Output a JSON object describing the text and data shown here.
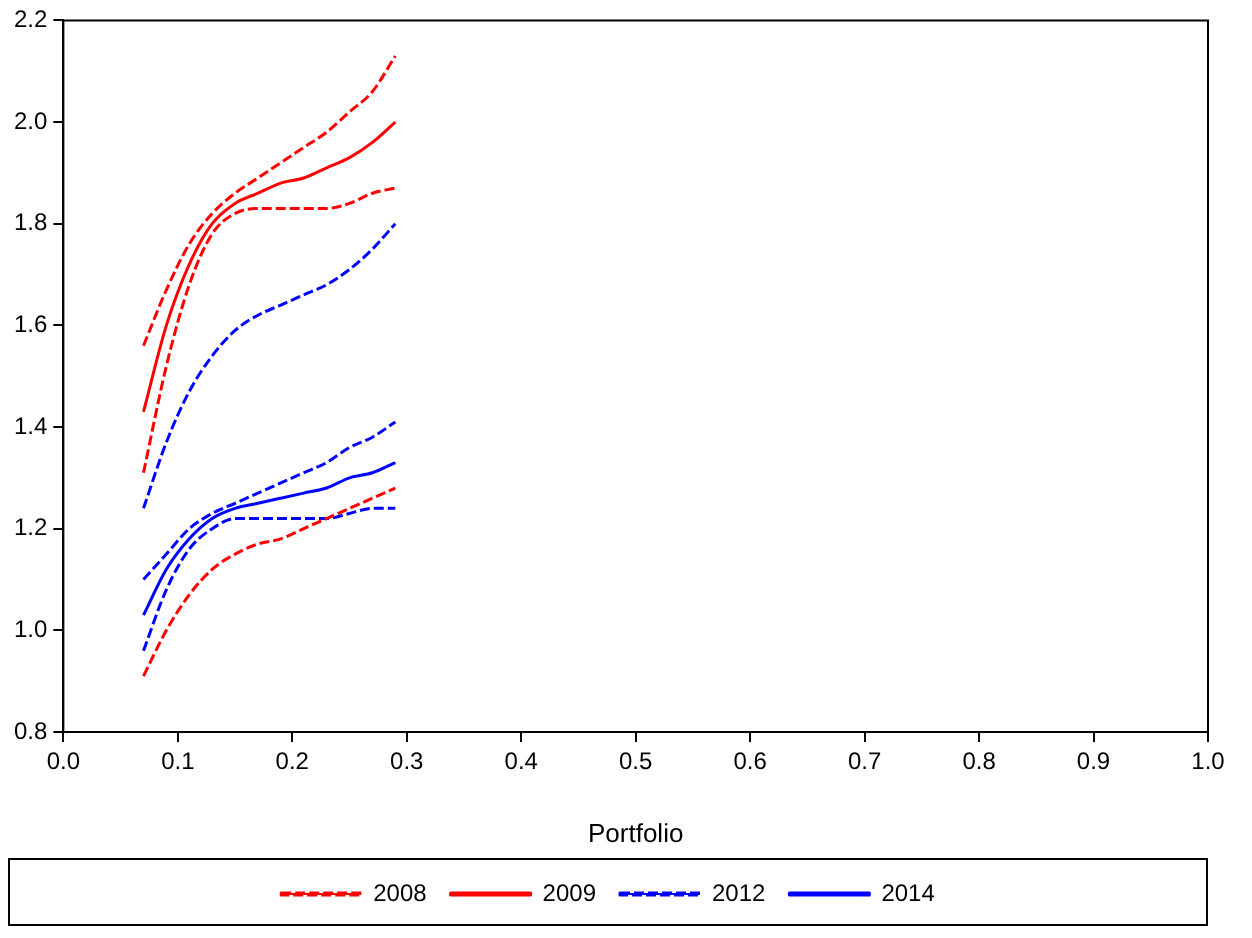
{
  "chart_data": {
    "type": "line",
    "xlabel": "Portfolio",
    "legend": "bottom",
    "grid": false,
    "marker": "none",
    "xlim": [
      0,
      1
    ],
    "xticks": [
      {
        "value": 0,
        "label": "0.0"
      },
      {
        "value": 0.1,
        "label": "0.1"
      },
      {
        "value": 0.2,
        "label": "0.2"
      },
      {
        "value": 0.3,
        "label": "0.3"
      },
      {
        "value": 0.4,
        "label": "0.4"
      },
      {
        "value": 0.5,
        "label": "0.5"
      },
      {
        "value": 0.6,
        "label": "0.6"
      },
      {
        "value": 0.7,
        "label": "0.7"
      },
      {
        "value": 0.8,
        "label": "0.8"
      },
      {
        "value": 0.9,
        "label": "0.9"
      },
      {
        "value": 1,
        "label": "1.0"
      }
    ],
    "ylim": [
      0.8,
      2.2
    ],
    "yticks": [
      {
        "value": 0.8,
        "label": "0.8"
      },
      {
        "value": 1,
        "label": "1.0"
      },
      {
        "value": 1.2,
        "label": "1.2"
      },
      {
        "value": 1.4,
        "label": "1.4"
      },
      {
        "value": 1.6,
        "label": "1.6"
      },
      {
        "value": 1.8,
        "label": "1.8"
      },
      {
        "value": 2,
        "label": "2.0"
      },
      {
        "value": 2.2,
        "label": "2.2"
      }
    ],
    "x": [
      0.07,
      0.09,
      0.11,
      0.13,
      0.15,
      0.17,
      0.19,
      0.21,
      0.23,
      0.25,
      0.27,
      0.29
    ],
    "series": [
      {
        "name": "2008",
        "color": "#ff0000",
        "line_style": "dashed",
        "values": [
          0.91,
          1.0,
          1.07,
          1.12,
          1.15,
          1.17,
          1.18,
          1.2,
          1.22,
          1.24,
          1.26,
          1.28
        ]
      },
      {
        "name": "2009",
        "color": "#ff0000",
        "line_style": "solid",
        "values": [
          1.43,
          1.6,
          1.72,
          1.8,
          1.84,
          1.86,
          1.88,
          1.89,
          1.91,
          1.93,
          1.96,
          2.0
        ]
      },
      {
        "color": "#ff0000",
        "line_style": "dashed",
        "values": [
          1.31,
          1.52,
          1.68,
          1.78,
          1.82,
          1.83,
          1.83,
          1.83,
          1.83,
          1.84,
          1.86,
          1.87
        ]
      },
      {
        "color": "#ff0000",
        "line_style": "dashed",
        "values": [
          1.56,
          1.67,
          1.76,
          1.82,
          1.86,
          1.89,
          1.92,
          1.95,
          1.98,
          2.02,
          2.06,
          2.13
        ]
      },
      {
        "name": "2012",
        "color": "#0000ff",
        "line_style": "dashed",
        "values": [
          1.24,
          1.37,
          1.47,
          1.54,
          1.59,
          1.62,
          1.64,
          1.66,
          1.68,
          1.71,
          1.75,
          1.8
        ]
      },
      {
        "name": "2014",
        "color": "#0000ff",
        "line_style": "solid",
        "values": [
          1.03,
          1.12,
          1.18,
          1.22,
          1.24,
          1.25,
          1.26,
          1.27,
          1.28,
          1.3,
          1.31,
          1.33
        ]
      },
      {
        "color": "#0000ff",
        "line_style": "dashed",
        "values": [
          0.96,
          1.08,
          1.16,
          1.2,
          1.22,
          1.22,
          1.22,
          1.22,
          1.22,
          1.23,
          1.24,
          1.24
        ]
      },
      {
        "color": "#0000ff",
        "line_style": "dashed",
        "values": [
          1.1,
          1.15,
          1.2,
          1.23,
          1.25,
          1.27,
          1.29,
          1.31,
          1.33,
          1.36,
          1.38,
          1.41
        ]
      }
    ]
  }
}
